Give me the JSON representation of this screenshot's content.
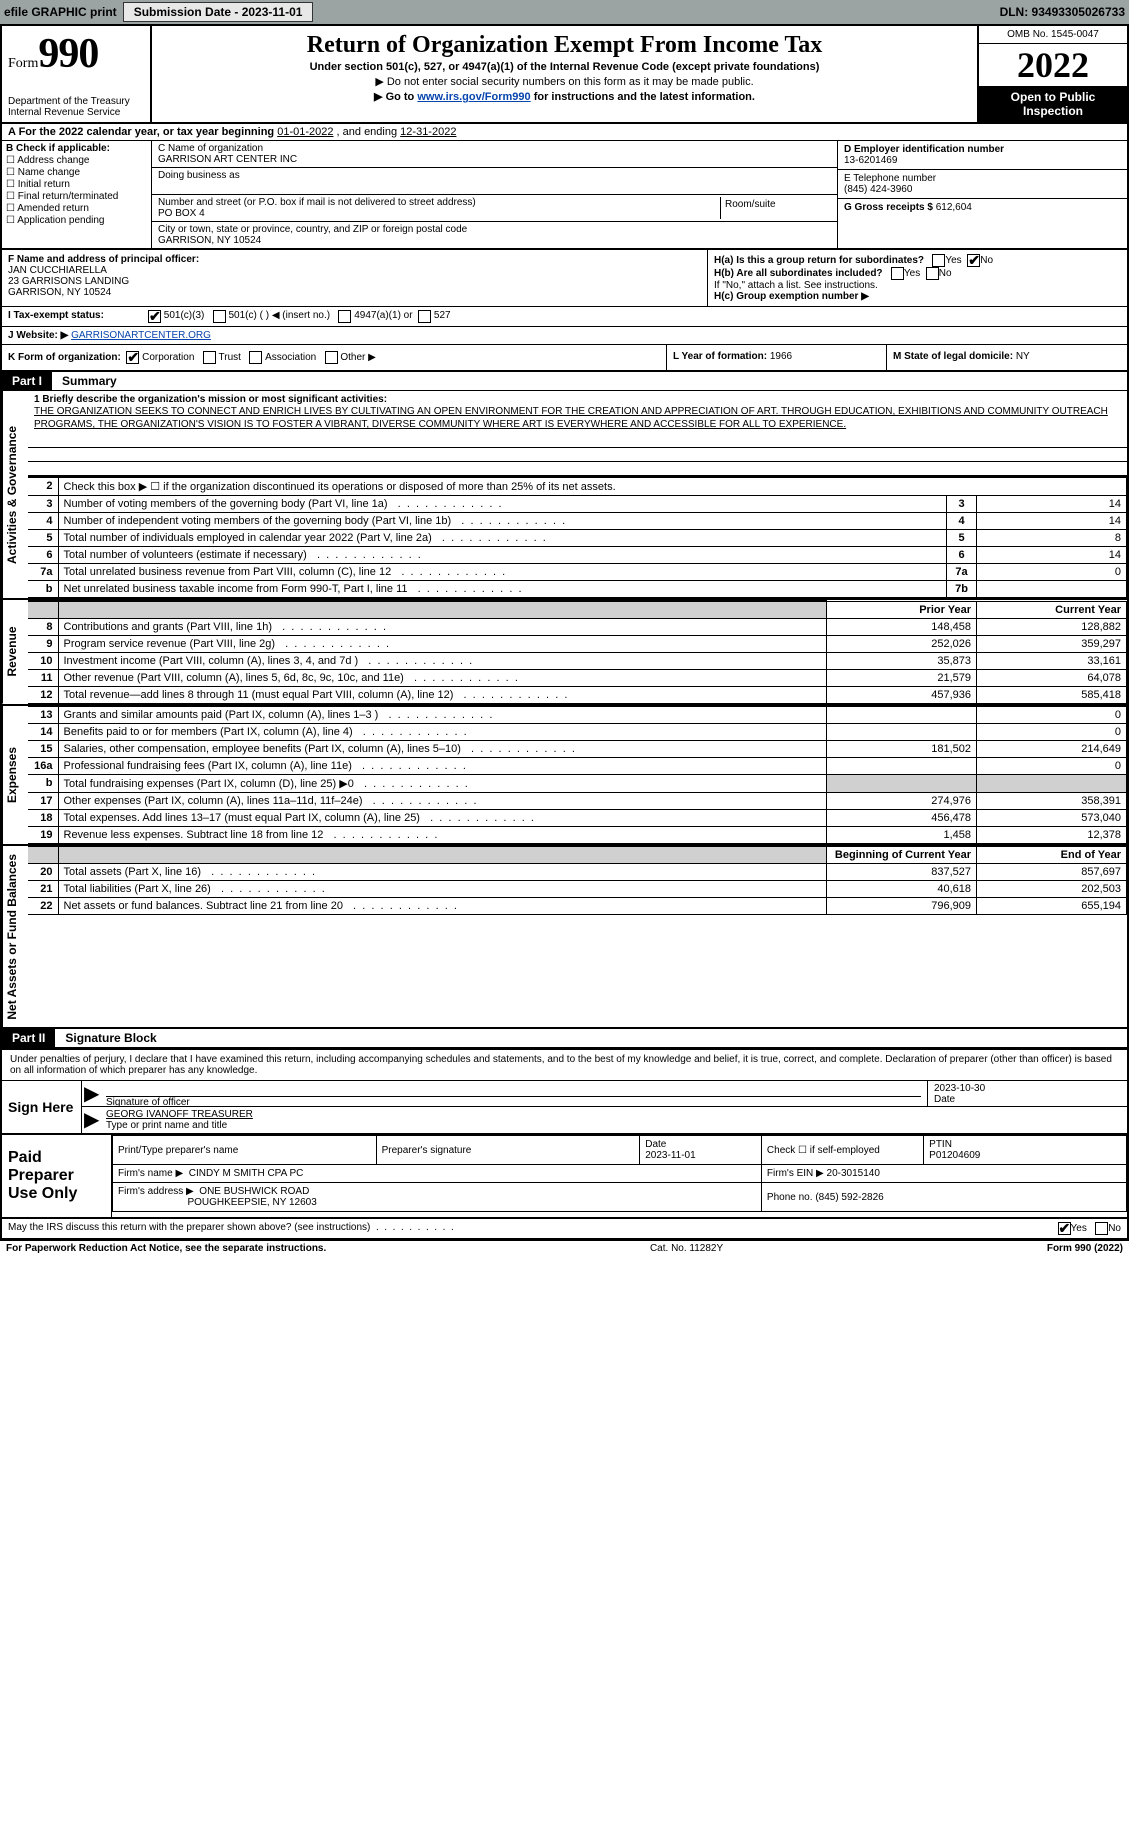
{
  "topbar": {
    "efile": "efile GRAPHIC print",
    "submission_btn": "Submission Date - 2023-11-01",
    "dln": "DLN: 93493305026733"
  },
  "header": {
    "form_word": "Form",
    "form_num": "990",
    "dept1": "Department of the Treasury",
    "dept2": "Internal Revenue Service",
    "title": "Return of Organization Exempt From Income Tax",
    "subtitle": "Under section 501(c), 527, or 4947(a)(1) of the Internal Revenue Code (except private foundations)",
    "note1": "▶ Do not enter social security numbers on this form as it may be made public.",
    "note2_pre": "▶ Go to ",
    "note2_link": "www.irs.gov/Form990",
    "note2_post": " for instructions and the latest information.",
    "omb": "OMB No. 1545-0047",
    "year": "2022",
    "open": "Open to Public Inspection"
  },
  "rowA": {
    "text_a": "A For the 2022 calendar year, or tax year beginning ",
    "begin": "01-01-2022",
    "mid": "  , and ending ",
    "end": "12-31-2022"
  },
  "boxB": {
    "label": "B Check if applicable:",
    "opts": [
      "Address change",
      "Name change",
      "Initial return",
      "Final return/terminated",
      "Amended return",
      "Application pending"
    ]
  },
  "boxC": {
    "name_label": "C Name of organization",
    "name": "GARRISON ART CENTER INC",
    "dba_label": "Doing business as",
    "addr_label": "Number and street (or P.O. box if mail is not delivered to street address)",
    "room_label": "Room/suite",
    "addr": "PO BOX 4",
    "city_label": "City or town, state or province, country, and ZIP or foreign postal code",
    "city": "GARRISON, NY  10524"
  },
  "boxD": {
    "label": "D Employer identification number",
    "val": "13-6201469"
  },
  "boxE": {
    "label": "E Telephone number",
    "val": "(845) 424-3960"
  },
  "boxG": {
    "label": "G Gross receipts $",
    "val": "612,604"
  },
  "boxF": {
    "label": "F Name and address of principal officer:",
    "name": "JAN CUCCHIARELLA",
    "addr1": "23 GARRISONS LANDING",
    "addr2": "GARRISON, NY  10524"
  },
  "boxH": {
    "ha": "H(a)  Is this a group return for subordinates?",
    "hb": "H(b)  Are all subordinates included?",
    "hb_note": "If \"No,\" attach a list. See instructions.",
    "hc": "H(c)  Group exemption number ▶",
    "yes": "Yes",
    "no": "No"
  },
  "rowI": {
    "label": "I  Tax-exempt status:",
    "opts": [
      "501(c)(3)",
      "501(c) (   ) ◀ (insert no.)",
      "4947(a)(1) or",
      "527"
    ]
  },
  "rowJ": {
    "label": "J  Website: ▶",
    "val": "GARRISONARTCENTER.ORG"
  },
  "rowK": {
    "label": "K Form of organization:",
    "opts": [
      "Corporation",
      "Trust",
      "Association",
      "Other ▶"
    ]
  },
  "rowL": {
    "label": "L Year of formation:",
    "val": "1966"
  },
  "rowM": {
    "label": "M State of legal domicile:",
    "val": "NY"
  },
  "part1": {
    "num": "Part I",
    "title": "Summary"
  },
  "sidelabels": {
    "s1": "Activities & Governance",
    "s2": "Revenue",
    "s3": "Expenses",
    "s4": "Net Assets or Fund Balances"
  },
  "mission": {
    "label": "1  Briefly describe the organization's mission or most significant activities:",
    "text": "THE ORGANIZATION SEEKS TO CONNECT AND ENRICH LIVES BY CULTIVATING AN OPEN ENVIRONMENT FOR THE CREATION AND APPRECIATION OF ART. THROUGH EDUCATION, EXHIBITIONS AND COMMUNITY OUTREACH PROGRAMS, THE ORGANIZATION'S VISION IS TO FOSTER A VIBRANT, DIVERSE COMMUNITY WHERE ART IS EVERYWHERE AND ACCESSIBLE FOR ALL TO EXPERIENCE."
  },
  "gov": {
    "line2": "Check this box ▶ ☐ if the organization discontinued its operations or disposed of more than 25% of its net assets.",
    "rows": [
      {
        "n": "3",
        "d": "Number of voting members of the governing body (Part VI, line 1a)",
        "b": "3",
        "v": "14"
      },
      {
        "n": "4",
        "d": "Number of independent voting members of the governing body (Part VI, line 1b)",
        "b": "4",
        "v": "14"
      },
      {
        "n": "5",
        "d": "Total number of individuals employed in calendar year 2022 (Part V, line 2a)",
        "b": "5",
        "v": "8"
      },
      {
        "n": "6",
        "d": "Total number of volunteers (estimate if necessary)",
        "b": "6",
        "v": "14"
      },
      {
        "n": "7a",
        "d": "Total unrelated business revenue from Part VIII, column (C), line 12",
        "b": "7a",
        "v": "0"
      },
      {
        "n": "b",
        "d": "Net unrelated business taxable income from Form 990-T, Part I, line 11",
        "b": "7b",
        "v": ""
      }
    ]
  },
  "yearhdr": {
    "prior": "Prior Year",
    "current": "Current Year"
  },
  "revenue": [
    {
      "n": "8",
      "d": "Contributions and grants (Part VIII, line 1h)",
      "p": "148,458",
      "c": "128,882"
    },
    {
      "n": "9",
      "d": "Program service revenue (Part VIII, line 2g)",
      "p": "252,026",
      "c": "359,297"
    },
    {
      "n": "10",
      "d": "Investment income (Part VIII, column (A), lines 3, 4, and 7d )",
      "p": "35,873",
      "c": "33,161"
    },
    {
      "n": "11",
      "d": "Other revenue (Part VIII, column (A), lines 5, 6d, 8c, 9c, 10c, and 11e)",
      "p": "21,579",
      "c": "64,078"
    },
    {
      "n": "12",
      "d": "Total revenue—add lines 8 through 11 (must equal Part VIII, column (A), line 12)",
      "p": "457,936",
      "c": "585,418"
    }
  ],
  "expenses": [
    {
      "n": "13",
      "d": "Grants and similar amounts paid (Part IX, column (A), lines 1–3 )",
      "p": "",
      "c": "0"
    },
    {
      "n": "14",
      "d": "Benefits paid to or for members (Part IX, column (A), line 4)",
      "p": "",
      "c": "0"
    },
    {
      "n": "15",
      "d": "Salaries, other compensation, employee benefits (Part IX, column (A), lines 5–10)",
      "p": "181,502",
      "c": "214,649"
    },
    {
      "n": "16a",
      "d": "Professional fundraising fees (Part IX, column (A), line 11e)",
      "p": "",
      "c": "0"
    },
    {
      "n": "b",
      "d": "Total fundraising expenses (Part IX, column (D), line 25) ▶0",
      "p": "shade",
      "c": "shade"
    },
    {
      "n": "17",
      "d": "Other expenses (Part IX, column (A), lines 11a–11d, 11f–24e)",
      "p": "274,976",
      "c": "358,391"
    },
    {
      "n": "18",
      "d": "Total expenses. Add lines 13–17 (must equal Part IX, column (A), line 25)",
      "p": "456,478",
      "c": "573,040"
    },
    {
      "n": "19",
      "d": "Revenue less expenses. Subtract line 18 from line 12",
      "p": "1,458",
      "c": "12,378"
    }
  ],
  "nethdr": {
    "prior": "Beginning of Current Year",
    "current": "End of Year"
  },
  "net": [
    {
      "n": "20",
      "d": "Total assets (Part X, line 16)",
      "p": "837,527",
      "c": "857,697"
    },
    {
      "n": "21",
      "d": "Total liabilities (Part X, line 26)",
      "p": "40,618",
      "c": "202,503"
    },
    {
      "n": "22",
      "d": "Net assets or fund balances. Subtract line 21 from line 20",
      "p": "796,909",
      "c": "655,194"
    }
  ],
  "part2": {
    "num": "Part II",
    "title": "Signature Block"
  },
  "sig": {
    "decl": "Under penalties of perjury, I declare that I have examined this return, including accompanying schedules and statements, and to the best of my knowledge and belief, it is true, correct, and complete. Declaration of preparer (other than officer) is based on all information of which preparer has any knowledge.",
    "sign_here": "Sign Here",
    "sig_officer": "Signature of officer",
    "date": "Date",
    "date_val": "2023-10-30",
    "name": "GEORG IVANOFF TREASURER",
    "name_label": "Type or print name and title"
  },
  "prep": {
    "title": "Paid Preparer Use Only",
    "h1": "Print/Type preparer's name",
    "h2": "Preparer's signature",
    "h3": "Date",
    "h3v": "2023-11-01",
    "h4": "Check ☐ if self-employed",
    "h5": "PTIN",
    "h5v": "P01204609",
    "firm_label": "Firm's name    ▶",
    "firm": "CINDY M SMITH CPA PC",
    "ein_label": "Firm's EIN ▶",
    "ein": "20-3015140",
    "addr_label": "Firm's address ▶",
    "addr1": "ONE BUSHWICK ROAD",
    "addr2": "POUGHKEEPSIE, NY  12603",
    "phone_label": "Phone no.",
    "phone": "(845) 592-2826"
  },
  "footer": {
    "q": "May the IRS discuss this return with the preparer shown above? (see instructions)",
    "yes": "Yes",
    "no": "No"
  },
  "bottom": {
    "left": "For Paperwork Reduction Act Notice, see the separate instructions.",
    "mid": "Cat. No. 11282Y",
    "right": "Form 990 (2022)"
  }
}
